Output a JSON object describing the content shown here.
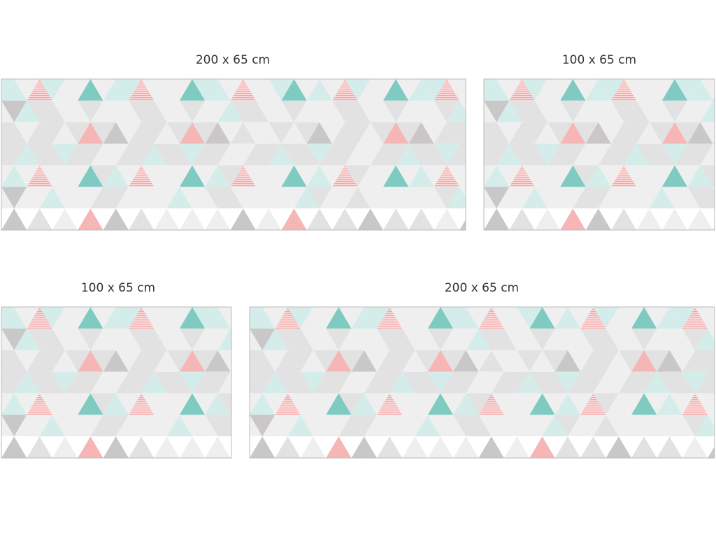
{
  "panels": [
    {
      "label": "200 x 65 cm"
    },
    {
      "label": "100 x 65 cm"
    },
    {
      "label": "100 x 65 cm"
    },
    {
      "label": "200 x 65 cm"
    }
  ]
}
